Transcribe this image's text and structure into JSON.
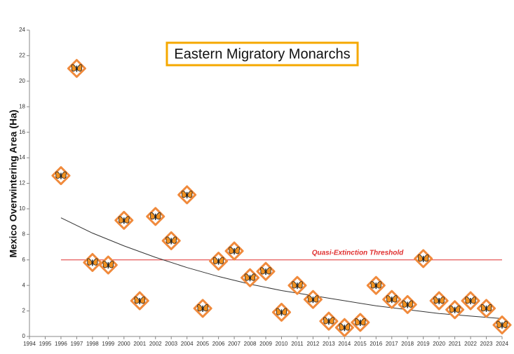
{
  "chart_data": {
    "type": "scatter",
    "title": "Eastern Migratory Monarchs",
    "y_label": "Mexico Overwintering Area (Ha)",
    "x": [
      1996,
      1997,
      1998,
      1999,
      2000,
      2001,
      2002,
      2003,
      2004,
      2005,
      2006,
      2007,
      2008,
      2009,
      2010,
      2011,
      2012,
      2013,
      2014,
      2015,
      2016,
      2017,
      2018,
      2019,
      2020,
      2021,
      2022,
      2023,
      2024
    ],
    "values": [
      12.6,
      21.0,
      5.8,
      5.6,
      9.1,
      2.8,
      9.4,
      7.5,
      11.1,
      2.2,
      5.9,
      6.7,
      4.6,
      5.1,
      1.9,
      4.0,
      2.9,
      1.2,
      0.7,
      1.1,
      4.0,
      2.9,
      2.5,
      6.1,
      2.8,
      2.1,
      2.8,
      2.2,
      0.9
    ],
    "color": "#f08a3c",
    "trend": {
      "color": "#333333",
      "x": [
        1996,
        1998,
        2000,
        2002,
        2004,
        2006,
        2008,
        2010,
        2012,
        2014,
        2016,
        2018,
        2020,
        2022,
        2024
      ],
      "values": [
        9.3,
        8.1,
        7.1,
        6.2,
        5.4,
        4.7,
        4.1,
        3.6,
        3.2,
        2.8,
        2.4,
        2.1,
        1.8,
        1.6,
        1.4
      ]
    },
    "threshold": {
      "label": "Quasi-Extinction Threshold",
      "value": 6,
      "x": [
        1996,
        2024
      ],
      "color": "#e03030"
    },
    "xlim": [
      1994,
      2024
    ],
    "xticks": [
      1994,
      1995,
      1996,
      1997,
      1998,
      1999,
      2000,
      2001,
      2002,
      2003,
      2004,
      2005,
      2006,
      2007,
      2008,
      2009,
      2010,
      2011,
      2012,
      2013,
      2014,
      2015,
      2016,
      2017,
      2018,
      2019,
      2020,
      2021,
      2022,
      2023,
      2024
    ],
    "ylim": [
      0,
      24
    ],
    "yticks": [
      0,
      2,
      4,
      6,
      8,
      10,
      12,
      14,
      16,
      18,
      20,
      22,
      24
    ]
  }
}
